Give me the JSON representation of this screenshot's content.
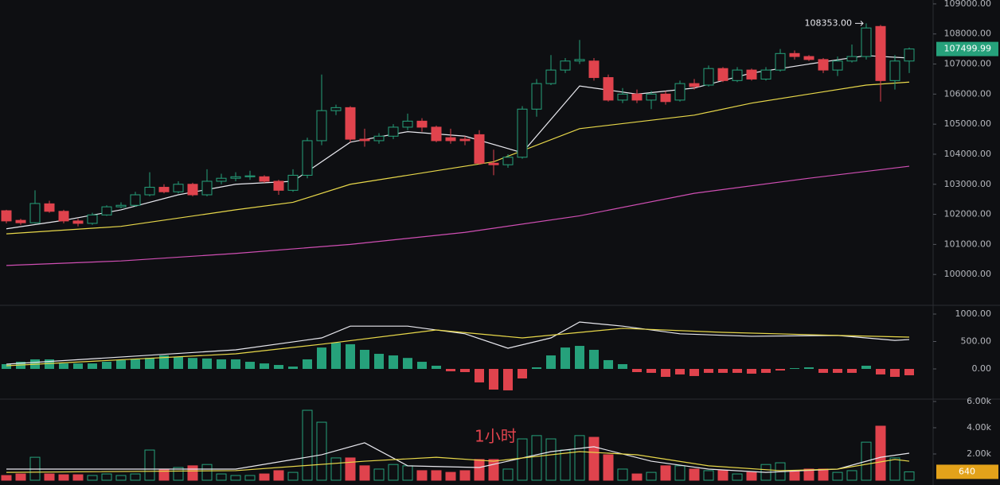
{
  "chart_data": [
    {
      "type": "candlestick",
      "open": [
        102120,
        101800,
        101720,
        102350,
        102100,
        101780,
        101700,
        101980,
        102250,
        102300,
        102650,
        102900,
        102750,
        103000,
        102650,
        103100,
        103200,
        103250,
        103250,
        103100,
        102800,
        103300,
        104450,
        105450,
        105550,
        104500,
        104450,
        104600,
        104900,
        105100,
        104900,
        104550,
        104500,
        104650,
        103700,
        103650,
        103900,
        105500,
        106350,
        106800,
        107100,
        107100,
        106550,
        105800,
        106000,
        105800,
        106000,
        105800,
        106350,
        106300,
        106850,
        106450,
        106800,
        106500,
        106800,
        107350,
        107250,
        107150,
        106800,
        107100,
        107250,
        108250,
        106450,
        107100
      ],
      "high": [
        102150,
        101850,
        102800,
        102450,
        102150,
        101850,
        102050,
        102300,
        102400,
        102750,
        103400,
        103000,
        103100,
        103050,
        103500,
        103350,
        103400,
        103450,
        103300,
        103150,
        103500,
        104550,
        106650,
        105650,
        105600,
        104850,
        104700,
        105000,
        105350,
        105200,
        104950,
        104850,
        104600,
        104800,
        104150,
        104000,
        105600,
        106500,
        107300,
        107200,
        107800,
        107200,
        106650,
        106200,
        106150,
        106100,
        106100,
        106450,
        106500,
        106950,
        106900,
        106900,
        106850,
        106900,
        107500,
        107450,
        107300,
        107200,
        107250,
        107650,
        108353,
        108300,
        107300,
        107550
      ],
      "low": [
        101700,
        101650,
        101700,
        102050,
        101700,
        101600,
        101650,
        101950,
        102200,
        102250,
        102600,
        102700,
        102700,
        102600,
        102600,
        103000,
        103100,
        103150,
        103050,
        102650,
        102750,
        103200,
        104300,
        105300,
        104400,
        104250,
        104350,
        104500,
        104800,
        104750,
        104400,
        104350,
        104300,
        103650,
        103300,
        103550,
        103850,
        105250,
        106300,
        106700,
        107000,
        106450,
        105750,
        105700,
        105700,
        105500,
        105650,
        105750,
        106150,
        106250,
        106400,
        106400,
        106450,
        106450,
        106750,
        107150,
        107100,
        106700,
        106600,
        107050,
        107150,
        105750,
        106150,
        106700
      ],
      "close": [
        101780,
        101720,
        102360,
        102100,
        101780,
        101700,
        101980,
        102250,
        102300,
        102650,
        102900,
        102750,
        103000,
        102650,
        103100,
        103200,
        103250,
        103280,
        103100,
        102800,
        103300,
        104450,
        105450,
        105550,
        104500,
        104450,
        104600,
        104900,
        105100,
        104900,
        104450,
        104450,
        104450,
        103700,
        103650,
        103900,
        105500,
        106350,
        106800,
        107100,
        107150,
        106550,
        105800,
        106000,
        105800,
        106000,
        105750,
        106350,
        106250,
        106850,
        106450,
        106800,
        106500,
        106800,
        107350,
        107250,
        107150,
        106800,
        107100,
        107250,
        108200,
        106450,
        107100,
        107499.99
      ],
      "up_color": "#26a17b",
      "down_color": "#e0434d",
      "ylim": [
        99000,
        109130
      ],
      "yticks": [
        {
          "value": 100000,
          "label": "100000.00"
        },
        {
          "value": 101000,
          "label": "101000.00"
        },
        {
          "value": 102000,
          "label": "102000.00"
        },
        {
          "value": 103000,
          "label": "103000.00"
        },
        {
          "value": 104000,
          "label": "104000.00"
        },
        {
          "value": 105000,
          "label": "105000.00"
        },
        {
          "value": 106000,
          "label": "106000.00"
        },
        {
          "value": 107000,
          "label": "107000.00"
        },
        {
          "value": 108000,
          "label": "108000.00"
        },
        {
          "value": 109000,
          "label": "109000.00"
        }
      ],
      "lines": [
        {
          "color": "#e8e8ee",
          "x": [
            0,
            4,
            8,
            12,
            16,
            20,
            24,
            28,
            32,
            36,
            40,
            44,
            48,
            52,
            56,
            60,
            63
          ],
          "values": [
            101520,
            101800,
            102150,
            102650,
            103000,
            103100,
            104400,
            104750,
            104600,
            104050,
            106270,
            106000,
            106200,
            106700,
            107000,
            107280,
            107200
          ]
        },
        {
          "color": "#e8d84a",
          "x": [
            0,
            8,
            16,
            20,
            24,
            32,
            34,
            40,
            48,
            52,
            56,
            60,
            63
          ],
          "values": [
            101350,
            101600,
            102150,
            102400,
            103000,
            103600,
            103750,
            104850,
            105300,
            105700,
            106000,
            106300,
            106400
          ]
        },
        {
          "color": "#d04fb4",
          "x": [
            0,
            8,
            16,
            24,
            32,
            40,
            48,
            56,
            63
          ],
          "values": [
            100300,
            100450,
            100700,
            101000,
            101400,
            101950,
            102700,
            103200,
            103600
          ]
        }
      ],
      "annotations": [
        {
          "text": "108353.00",
          "value": 108353,
          "x": 60
        }
      ],
      "last_price": {
        "value": 107499.99,
        "label": "107499.99"
      }
    },
    {
      "type": "macd",
      "values": [
        87,
        130,
        174,
        174,
        100,
        100,
        100,
        130,
        160,
        174,
        200,
        246,
        220,
        200,
        190,
        174,
        174,
        130,
        100,
        72,
        43,
        174,
        390,
        478,
        450,
        348,
        275,
        246,
        200,
        130,
        58,
        -43,
        -58,
        -246,
        -377,
        -391,
        -174,
        29,
        246,
        390,
        420,
        348,
        160,
        87,
        -58,
        -72,
        -145,
        -101,
        -130,
        -72,
        -72,
        -72,
        -87,
        -72,
        -29,
        14,
        29,
        -72,
        -72,
        -72,
        58,
        -101,
        -145,
        -116
      ],
      "up_color": "#26a17b",
      "down_color": "#e0434d",
      "ylim": [
        -522,
        1145
      ],
      "yticks": [
        {
          "value": 0,
          "label": "0.00"
        },
        {
          "value": 500,
          "label": "500.00"
        },
        {
          "value": 1000,
          "label": "1000.00"
        }
      ],
      "lines": [
        {
          "color": "#e8e8ee",
          "x": [
            0,
            16,
            22,
            24,
            28,
            32,
            35,
            38,
            40,
            43,
            47,
            52,
            58,
            62,
            63
          ],
          "values": [
            87,
            348,
            565,
            780,
            780,
            640,
            377,
            565,
            855,
            780,
            640,
            595,
            610,
            520,
            535
          ]
        },
        {
          "color": "#e8d84a",
          "x": [
            0,
            16,
            22,
            30,
            36,
            43,
            50,
            58,
            63
          ],
          "values": [
            58,
            275,
            450,
            710,
            565,
            740,
            667,
            610,
            580
          ]
        }
      ]
    },
    {
      "type": "volume",
      "values": [
        360,
        480,
        1750,
        480,
        420,
        420,
        360,
        480,
        360,
        480,
        2300,
        850,
        970,
        1100,
        1200,
        480,
        360,
        360,
        480,
        730,
        600,
        5330,
        4420,
        1700,
        1700,
        1100,
        850,
        1200,
        1100,
        730,
        730,
        600,
        730,
        1580,
        1580,
        850,
        3150,
        3400,
        3150,
        2300,
        3400,
        3270,
        1940,
        850,
        480,
        600,
        1100,
        1100,
        850,
        730,
        730,
        480,
        600,
        1200,
        1330,
        730,
        850,
        850,
        600,
        730,
        2900,
        4120,
        1700,
        640
      ],
      "ylim": [
        0,
        6300
      ],
      "yticks": [
        {
          "value": 2000,
          "label": "2.00k"
        },
        {
          "value": 4000,
          "label": "4.00k"
        },
        {
          "value": 6000,
          "label": "6.00k"
        }
      ],
      "lines": [
        {
          "color": "#e8e8ee",
          "x": [
            0,
            16,
            22,
            25,
            28,
            33,
            38,
            41,
            45,
            49,
            53,
            58,
            61,
            63
          ],
          "values": [
            850,
            850,
            1940,
            2850,
            1100,
            970,
            2180,
            2550,
            1450,
            850,
            600,
            850,
            1750,
            2060
          ]
        },
        {
          "color": "#e8d84a",
          "x": [
            0,
            16,
            25,
            30,
            34,
            40,
            44,
            49,
            54,
            58,
            62,
            63
          ],
          "values": [
            600,
            730,
            1450,
            1750,
            1450,
            2180,
            1940,
            1100,
            730,
            850,
            1580,
            1450
          ]
        }
      ],
      "last": {
        "value": 640,
        "label": "640"
      },
      "label": "1小时"
    }
  ]
}
